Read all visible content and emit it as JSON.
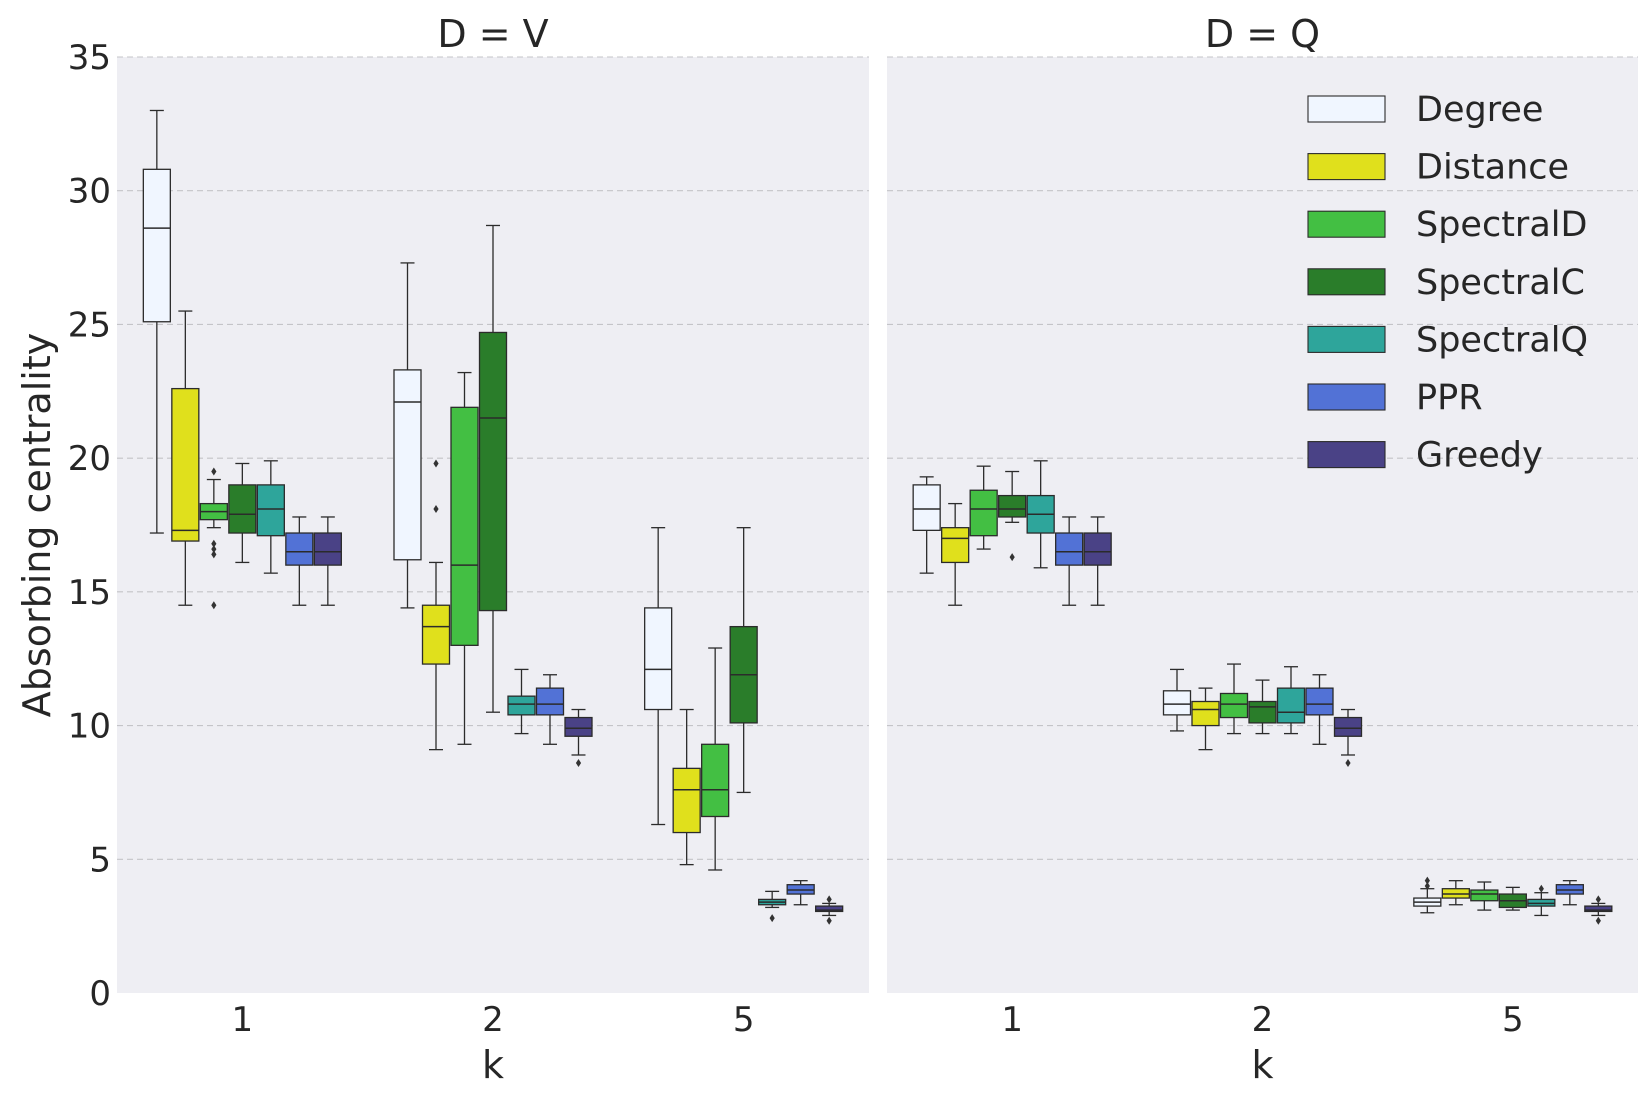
{
  "chart_data": {
    "type": "box",
    "ylabel": "Absorbing centrality",
    "xlabel": "k",
    "ylim": [
      0,
      35
    ],
    "yticks": [
      0,
      5,
      10,
      15,
      20,
      25,
      30,
      35
    ],
    "ytick_labels": [
      "0",
      "5",
      "10",
      "15",
      "20",
      "25",
      "30",
      "35"
    ],
    "categories": [
      "1",
      "2",
      "5"
    ],
    "grid": "horizontal dashed",
    "legend_position": "top-right of right panel",
    "methods": [
      {
        "name": "Degree",
        "color": "#f0f6ff"
      },
      {
        "name": "Distance",
        "color": "#e0e01c"
      },
      {
        "name": "SpectralD",
        "color": "#43bf43"
      },
      {
        "name": "SpectralC",
        "color": "#2a7d2a"
      },
      {
        "name": "SpectralQ",
        "color": "#2ea59b"
      },
      {
        "name": "PPR",
        "color": "#5272d6"
      },
      {
        "name": "Greedy",
        "color": "#4a4286"
      }
    ],
    "panels": [
      {
        "title": "D = V",
        "groups": [
          {
            "k": "1",
            "boxes": [
              {
                "method": "Degree",
                "whislo": 17.2,
                "q1": 25.1,
                "median": 28.6,
                "q3": 30.8,
                "whishi": 33.0,
                "fliers": []
              },
              {
                "method": "Distance",
                "whislo": 14.5,
                "q1": 16.9,
                "median": 17.3,
                "q3": 22.6,
                "whishi": 25.5,
                "fliers": []
              },
              {
                "method": "SpectralD",
                "whislo": 17.4,
                "q1": 17.7,
                "median": 18.0,
                "q3": 18.3,
                "whishi": 19.2,
                "fliers": [
                  14.5,
                  16.4,
                  16.6,
                  16.8,
                  19.5
                ]
              },
              {
                "method": "SpectralC",
                "whislo": 16.1,
                "q1": 17.2,
                "median": 17.9,
                "q3": 19.0,
                "whishi": 19.8,
                "fliers": []
              },
              {
                "method": "SpectralQ",
                "whislo": 15.7,
                "q1": 17.1,
                "median": 18.1,
                "q3": 19.0,
                "whishi": 19.9,
                "fliers": []
              },
              {
                "method": "PPR",
                "whislo": 14.5,
                "q1": 16.0,
                "median": 16.5,
                "q3": 17.2,
                "whishi": 17.8,
                "fliers": []
              },
              {
                "method": "Greedy",
                "whislo": 14.5,
                "q1": 16.0,
                "median": 16.5,
                "q3": 17.2,
                "whishi": 17.8,
                "fliers": []
              }
            ]
          },
          {
            "k": "2",
            "boxes": [
              {
                "method": "Degree",
                "whislo": 14.4,
                "q1": 16.2,
                "median": 22.1,
                "q3": 23.3,
                "whishi": 27.3,
                "fliers": []
              },
              {
                "method": "Distance",
                "whislo": 9.1,
                "q1": 12.3,
                "median": 13.7,
                "q3": 14.5,
                "whishi": 16.1,
                "fliers": [
                  18.1,
                  19.8
                ]
              },
              {
                "method": "SpectralD",
                "whislo": 9.3,
                "q1": 13.0,
                "median": 16.0,
                "q3": 21.9,
                "whishi": 23.2,
                "fliers": []
              },
              {
                "method": "SpectralC",
                "whislo": 10.5,
                "q1": 14.3,
                "median": 21.5,
                "q3": 24.7,
                "whishi": 28.7,
                "fliers": []
              },
              {
                "method": "SpectralQ",
                "whislo": 9.7,
                "q1": 10.4,
                "median": 10.8,
                "q3": 11.1,
                "whishi": 12.1,
                "fliers": []
              },
              {
                "method": "PPR",
                "whislo": 9.3,
                "q1": 10.4,
                "median": 10.8,
                "q3": 11.4,
                "whishi": 11.9,
                "fliers": []
              },
              {
                "method": "Greedy",
                "whislo": 8.9,
                "q1": 9.6,
                "median": 9.9,
                "q3": 10.3,
                "whishi": 10.6,
                "fliers": [
                  8.6
                ]
              }
            ]
          },
          {
            "k": "5",
            "boxes": [
              {
                "method": "Degree",
                "whislo": 6.3,
                "q1": 10.6,
                "median": 12.1,
                "q3": 14.4,
                "whishi": 17.4,
                "fliers": []
              },
              {
                "method": "Distance",
                "whislo": 4.8,
                "q1": 6.0,
                "median": 7.6,
                "q3": 8.4,
                "whishi": 10.6,
                "fliers": []
              },
              {
                "method": "SpectralD",
                "whislo": 4.6,
                "q1": 6.6,
                "median": 7.6,
                "q3": 9.3,
                "whishi": 12.9,
                "fliers": []
              },
              {
                "method": "SpectralC",
                "whislo": 7.5,
                "q1": 10.1,
                "median": 11.9,
                "q3": 13.7,
                "whishi": 17.4,
                "fliers": []
              },
              {
                "method": "SpectralQ",
                "whislo": 3.2,
                "q1": 3.3,
                "median": 3.4,
                "q3": 3.5,
                "whishi": 3.8,
                "fliers": [
                  2.8
                ]
              },
              {
                "method": "PPR",
                "whislo": 3.3,
                "q1": 3.7,
                "median": 3.85,
                "q3": 4.05,
                "whishi": 4.2,
                "fliers": []
              },
              {
                "method": "Greedy",
                "whislo": 2.9,
                "q1": 3.05,
                "median": 3.1,
                "q3": 3.25,
                "whishi": 3.35,
                "fliers": [
                  2.7,
                  3.5
                ]
              }
            ]
          }
        ]
      },
      {
        "title": "D = Q",
        "groups": [
          {
            "k": "1",
            "boxes": [
              {
                "method": "Degree",
                "whislo": 15.7,
                "q1": 17.3,
                "median": 18.1,
                "q3": 19.0,
                "whishi": 19.3,
                "fliers": []
              },
              {
                "method": "Distance",
                "whislo": 14.5,
                "q1": 16.1,
                "median": 17.0,
                "q3": 17.4,
                "whishi": 18.3,
                "fliers": []
              },
              {
                "method": "SpectralD",
                "whislo": 16.6,
                "q1": 17.1,
                "median": 18.1,
                "q3": 18.8,
                "whishi": 19.7,
                "fliers": []
              },
              {
                "method": "SpectralC",
                "whislo": 17.6,
                "q1": 17.8,
                "median": 18.1,
                "q3": 18.6,
                "whishi": 19.5,
                "fliers": [
                  16.3
                ]
              },
              {
                "method": "SpectralQ",
                "whislo": 15.9,
                "q1": 17.2,
                "median": 17.9,
                "q3": 18.6,
                "whishi": 19.9,
                "fliers": []
              },
              {
                "method": "PPR",
                "whislo": 14.5,
                "q1": 16.0,
                "median": 16.5,
                "q3": 17.2,
                "whishi": 17.8,
                "fliers": []
              },
              {
                "method": "Greedy",
                "whislo": 14.5,
                "q1": 16.0,
                "median": 16.5,
                "q3": 17.2,
                "whishi": 17.8,
                "fliers": []
              }
            ]
          },
          {
            "k": "2",
            "boxes": [
              {
                "method": "Degree",
                "whislo": 9.8,
                "q1": 10.4,
                "median": 10.8,
                "q3": 11.3,
                "whishi": 12.1,
                "fliers": []
              },
              {
                "method": "Distance",
                "whislo": 9.1,
                "q1": 10.0,
                "median": 10.6,
                "q3": 10.9,
                "whishi": 11.4,
                "fliers": []
              },
              {
                "method": "SpectralD",
                "whislo": 9.7,
                "q1": 10.3,
                "median": 10.8,
                "q3": 11.2,
                "whishi": 12.3,
                "fliers": []
              },
              {
                "method": "SpectralC",
                "whislo": 9.7,
                "q1": 10.1,
                "median": 10.7,
                "q3": 10.9,
                "whishi": 11.7,
                "fliers": []
              },
              {
                "method": "SpectralQ",
                "whislo": 9.7,
                "q1": 10.1,
                "median": 10.5,
                "q3": 11.4,
                "whishi": 12.2,
                "fliers": []
              },
              {
                "method": "PPR",
                "whislo": 9.3,
                "q1": 10.4,
                "median": 10.8,
                "q3": 11.4,
                "whishi": 11.9,
                "fliers": []
              },
              {
                "method": "Greedy",
                "whislo": 8.9,
                "q1": 9.6,
                "median": 9.9,
                "q3": 10.3,
                "whishi": 10.6,
                "fliers": [
                  8.6
                ]
              }
            ]
          },
          {
            "k": "5",
            "boxes": [
              {
                "method": "Degree",
                "whislo": 3.0,
                "q1": 3.25,
                "median": 3.4,
                "q3": 3.55,
                "whishi": 3.9,
                "fliers": [
                  4.0,
                  4.2
                ]
              },
              {
                "method": "Distance",
                "whislo": 3.3,
                "q1": 3.55,
                "median": 3.7,
                "q3": 3.9,
                "whishi": 4.2,
                "fliers": []
              },
              {
                "method": "SpectralD",
                "whislo": 3.1,
                "q1": 3.45,
                "median": 3.7,
                "q3": 3.85,
                "whishi": 4.15,
                "fliers": []
              },
              {
                "method": "SpectralC",
                "whislo": 3.1,
                "q1": 3.2,
                "median": 3.45,
                "q3": 3.7,
                "whishi": 3.95,
                "fliers": []
              },
              {
                "method": "SpectralQ",
                "whislo": 2.9,
                "q1": 3.25,
                "median": 3.35,
                "q3": 3.5,
                "whishi": 3.75,
                "fliers": [
                  3.9
                ]
              },
              {
                "method": "PPR",
                "whislo": 3.3,
                "q1": 3.7,
                "median": 3.85,
                "q3": 4.05,
                "whishi": 4.2,
                "fliers": []
              },
              {
                "method": "Greedy",
                "whislo": 2.9,
                "q1": 3.05,
                "median": 3.1,
                "q3": 3.25,
                "whishi": 3.35,
                "fliers": [
                  2.7,
                  3.5
                ]
              }
            ]
          }
        ]
      }
    ]
  }
}
